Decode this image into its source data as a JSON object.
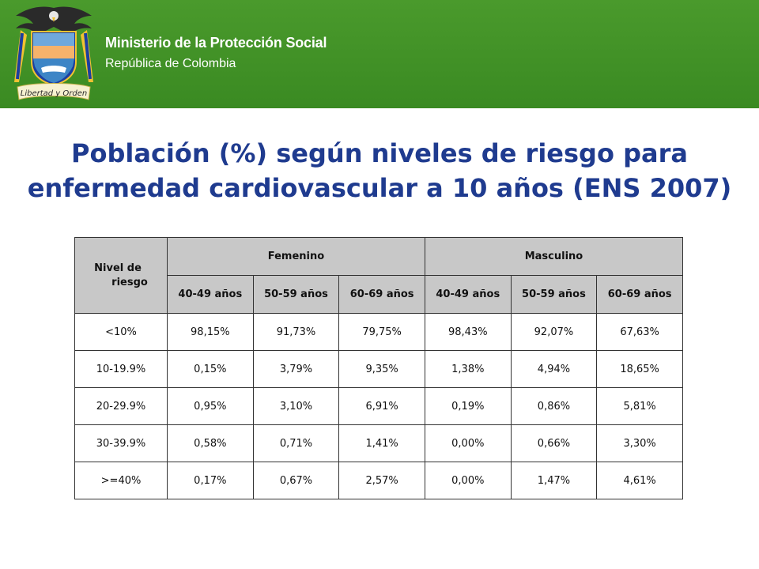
{
  "header": {
    "ministry": "Ministerio de la Protección Social",
    "republic": "República de Colombia",
    "seal_motto": "Libertad y Orden",
    "seal_icon": "colombia-coat-of-arms-icon",
    "band_color": "#3f8f25"
  },
  "title": {
    "line1": "Población (%) según niveles de riesgo para",
    "line2": "enfermedad cardiovascular a 10 años (ENS 2007)",
    "color": "#1f3b8f"
  },
  "table": {
    "header_nivel_line1": "Nivel de",
    "header_nivel_line2": "riesgo",
    "group_femenino": "Femenino",
    "group_masculino": "Masculino",
    "age_groups": [
      "40-49 años",
      "50-59 años",
      "60-69 años",
      "40-49 años",
      "50-59 años",
      "60-69 años"
    ],
    "rows": [
      {
        "nivel": "<10%",
        "values": [
          "98,15%",
          "91,73%",
          "79,75%",
          "98,43%",
          "92,07%",
          "67,63%"
        ]
      },
      {
        "nivel": "10-19.9%",
        "values": [
          "0,15%",
          "3,79%",
          "9,35%",
          "1,38%",
          "4,94%",
          "18,65%"
        ]
      },
      {
        "nivel": "20-29.9%",
        "values": [
          "0,95%",
          "3,10%",
          "6,91%",
          "0,19%",
          "0,86%",
          "5,81%"
        ]
      },
      {
        "nivel": "30-39.9%",
        "values": [
          "0,58%",
          "0,71%",
          "1,41%",
          "0,00%",
          "0,66%",
          "3,30%"
        ]
      },
      {
        "nivel": ">=40%",
        "values": [
          "0,17%",
          "0,67%",
          "2,57%",
          "0,00%",
          "1,47%",
          "4,61%"
        ]
      }
    ]
  }
}
